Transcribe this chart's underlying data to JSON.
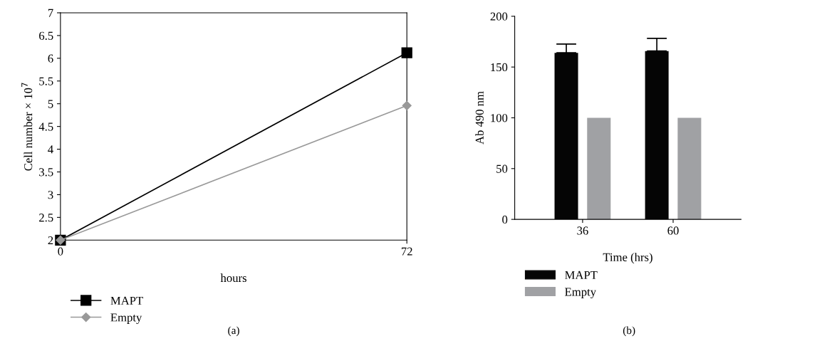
{
  "chart_data": [
    {
      "type": "line",
      "xlabel": "hours",
      "ylabel": "Cell number × 10$^{7}$",
      "x": [
        0,
        72
      ],
      "xlim": [
        0,
        72
      ],
      "xticks": [
        0,
        72
      ],
      "ylim": [
        2,
        7
      ],
      "yticks": [
        2,
        {
          "value": 2.5,
          "label": "2.5"
        },
        3,
        {
          "value": 3.5,
          "label": "3.5"
        },
        4,
        {
          "value": 4.5,
          "label": "4.5"
        },
        5,
        {
          "value": 5.5,
          "label": "5.5"
        },
        6,
        {
          "value": 6.5,
          "label": "6.5"
        },
        7
      ],
      "grid": false,
      "legend": "bottom",
      "line_style": "solid",
      "annotations": [
        "(a)"
      ],
      "series": [
        {
          "name": "MAPT",
          "color": "#000000",
          "marker": "square",
          "values": [
            2,
            6.12
          ]
        },
        {
          "name": "Empty",
          "color": "#999999",
          "marker": "diamond",
          "values": [
            2,
            4.96
          ]
        }
      ]
    },
    {
      "type": "bar",
      "xlabel": "Time (hrs)",
      "ylabel": "Ab 490 nm",
      "categories": [
        "36",
        "60"
      ],
      "ylim": [
        0,
        200
      ],
      "yticks": [
        0,
        50,
        100,
        150,
        200
      ],
      "grid": false,
      "legend": "bottom",
      "annotations": [
        "(b)"
      ],
      "series": [
        {
          "name": "MAPT",
          "color": "#050505",
          "values": [
            164,
            165.8
          ],
          "errors": [
            8.6,
            12.5
          ]
        },
        {
          "name": "Empty",
          "color": "#a0a1a4",
          "values": [
            100,
            100
          ]
        }
      ]
    }
  ]
}
